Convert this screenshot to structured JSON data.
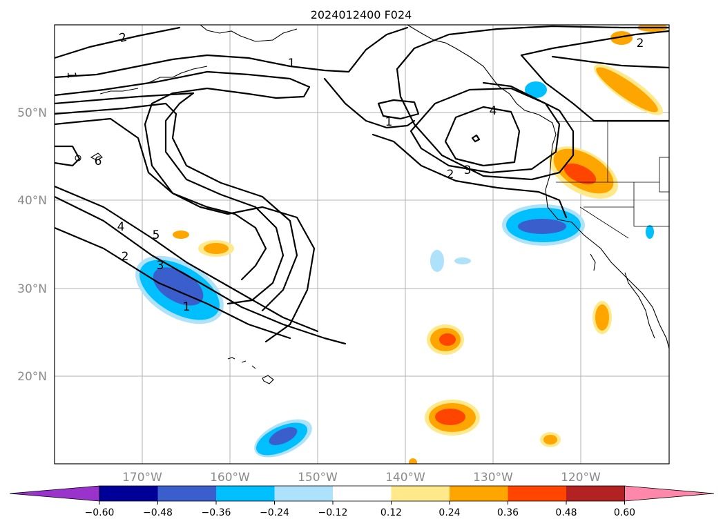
{
  "title": "2024012400 F024",
  "lat_labels": [
    "50°N",
    "40°N",
    "30°N",
    "20°N"
  ],
  "lon_labels": [
    "170°W",
    "160°W",
    "150°W",
    "140°W",
    "130°W",
    "120°W"
  ],
  "colorbar": {
    "ticks": [
      "−0.60",
      "−0.48",
      "−0.36",
      "−0.24",
      "−0.12",
      "0.12",
      "0.24",
      "0.36",
      "0.48",
      "0.60"
    ],
    "colors": [
      "#9933cc",
      "#000099",
      "#3a5fcd",
      "#00bfff",
      "#aee1fa",
      "#ffffff",
      "#ffe98a",
      "#ffa500",
      "#ff4500",
      "#b22222",
      "#ff88aa"
    ]
  },
  "contour_labels": [
    "2",
    "2",
    "1",
    "1",
    "1",
    "4",
    "3",
    "2",
    "6",
    "5",
    "4",
    "3",
    "2",
    "1"
  ]
}
